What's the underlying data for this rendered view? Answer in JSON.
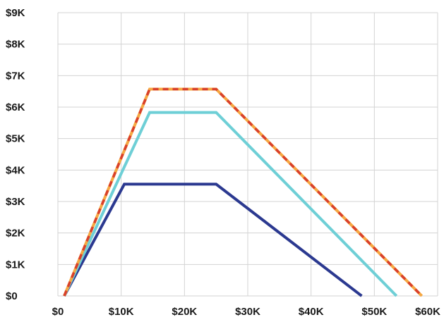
{
  "chart_data": {
    "type": "line",
    "x_ticks": [
      "$0",
      "$10K",
      "$20K",
      "$30K",
      "$40K",
      "$50K",
      "$60K"
    ],
    "x_tick_values": [
      0,
      10000,
      20000,
      30000,
      40000,
      50000,
      60000
    ],
    "y_ticks": [
      "$0",
      "$1K",
      "$2K",
      "$3K",
      "$4K",
      "$5K",
      "$6K",
      "$7K",
      "$8K",
      "$9K"
    ],
    "y_tick_values": [
      0,
      1000,
      2000,
      3000,
      4000,
      5000,
      6000,
      7000,
      8000,
      9000
    ],
    "xlim": [
      0,
      60000
    ],
    "ylim": [
      0,
      9000
    ],
    "grid": true,
    "legend": false,
    "series": [
      {
        "color": "#2b3990",
        "style": "solid",
        "points": [
          [
            1000,
            0
          ],
          [
            10500,
            3550
          ],
          [
            25000,
            3550
          ],
          [
            48000,
            0
          ]
        ]
      },
      {
        "color": "#6ecfd6",
        "style": "solid",
        "points": [
          [
            1000,
            0
          ],
          [
            14500,
            5830
          ],
          [
            25000,
            5830
          ],
          [
            53500,
            0
          ]
        ]
      },
      {
        "color": "#f5a742",
        "style": "solid",
        "points": [
          [
            1000,
            0
          ],
          [
            14500,
            6570
          ],
          [
            25000,
            6570
          ],
          [
            57500,
            0
          ]
        ]
      },
      {
        "color": "#d9402b",
        "style": "dashed",
        "points": [
          [
            1000,
            0
          ],
          [
            14500,
            6570
          ],
          [
            25000,
            6570
          ],
          [
            57500,
            0
          ]
        ]
      }
    ]
  }
}
